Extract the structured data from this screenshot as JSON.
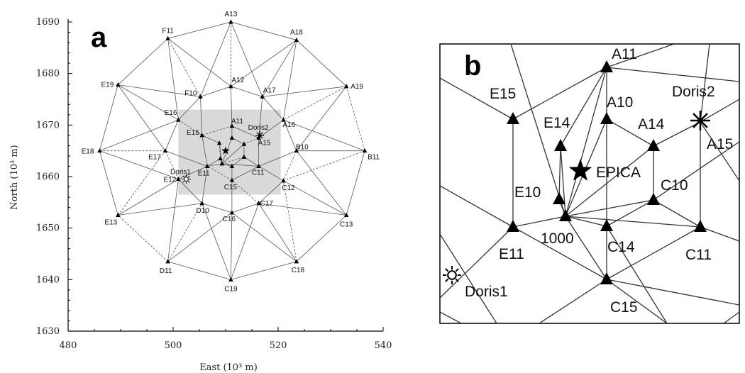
{
  "panel_a": {
    "letter": "a",
    "x_axis_title": "East (10³ m)",
    "y_axis_title": "North (10³ m)",
    "x_ticks": [
      "480",
      "500",
      "520",
      "540"
    ],
    "y_ticks": [
      "1630",
      "1640",
      "1650",
      "1660",
      "1670",
      "1680",
      "1690"
    ],
    "stations": [
      {
        "id": "A13",
        "e": 511.0,
        "n": 1690.0
      },
      {
        "id": "A18",
        "e": 523.5,
        "n": 1686.5
      },
      {
        "id": "F11",
        "e": 499.0,
        "n": 1686.8
      },
      {
        "id": "A19",
        "e": 533.0,
        "n": 1677.5
      },
      {
        "id": "E19",
        "e": 489.5,
        "n": 1677.8
      },
      {
        "id": "A12",
        "e": 511.0,
        "n": 1677.5
      },
      {
        "id": "A17",
        "e": 517.0,
        "n": 1675.5
      },
      {
        "id": "F10",
        "e": 505.2,
        "n": 1675.5
      },
      {
        "id": "E16",
        "e": 501.0,
        "n": 1671.0
      },
      {
        "id": "A16",
        "e": 521.0,
        "n": 1671.0
      },
      {
        "id": "A11",
        "e": 511.2,
        "n": 1669.8
      },
      {
        "id": "E15",
        "e": 505.5,
        "n": 1668.0
      },
      {
        "id": "A10",
        "e": 511.2,
        "n": 1667.5
      },
      {
        "id": "E14",
        "e": 508.8,
        "n": 1666.5
      },
      {
        "id": "A14",
        "e": 513.5,
        "n": 1666.3
      },
      {
        "id": "A15",
        "e": 516.3,
        "n": 1667.5
      },
      {
        "id": "E18",
        "e": 486.0,
        "n": 1665.0
      },
      {
        "id": "B11",
        "e": 536.5,
        "n": 1665.0
      },
      {
        "id": "E17",
        "e": 498.5,
        "n": 1665.0
      },
      {
        "id": "B10",
        "e": 523.5,
        "n": 1665.0
      },
      {
        "id": "E10",
        "e": 509.0,
        "n": 1663.5
      },
      {
        "id": "C10",
        "e": 513.5,
        "n": 1663.8
      },
      {
        "id": "E11",
        "e": 506.5,
        "n": 1662.0
      },
      {
        "id": "1000",
        "e": 509.3,
        "n": 1662.5
      },
      {
        "id": "C14",
        "e": 511.2,
        "n": 1662.0
      },
      {
        "id": "C11",
        "e": 516.3,
        "n": 1662.0
      },
      {
        "id": "E12",
        "e": 501.0,
        "n": 1659.5
      },
      {
        "id": "C15",
        "e": 511.2,
        "n": 1659.3
      },
      {
        "id": "C12",
        "e": 521.0,
        "n": 1659.2
      },
      {
        "id": "D10",
        "e": 505.5,
        "n": 1654.8
      },
      {
        "id": "C17",
        "e": 516.3,
        "n": 1654.8
      },
      {
        "id": "C16",
        "e": 511.2,
        "n": 1653.0
      },
      {
        "id": "E13",
        "e": 489.5,
        "n": 1652.5
      },
      {
        "id": "C13",
        "e": 533.0,
        "n": 1652.5
      },
      {
        "id": "D11",
        "e": 499.0,
        "n": 1643.5
      },
      {
        "id": "C18",
        "e": 523.5,
        "n": 1643.5
      },
      {
        "id": "C19",
        "e": 511.0,
        "n": 1640.0
      }
    ],
    "labeled_stations": [
      {
        "id": "A13",
        "text": "A13"
      },
      {
        "id": "A18",
        "text": "A18"
      },
      {
        "id": "F11",
        "text": "F11"
      },
      {
        "id": "A19",
        "text": "A19"
      },
      {
        "id": "E19",
        "text": "E19"
      },
      {
        "id": "A12",
        "text": "A12"
      },
      {
        "id": "A17",
        "text": "A17"
      },
      {
        "id": "F10",
        "text": "F10"
      },
      {
        "id": "E16",
        "text": "E16"
      },
      {
        "id": "A16",
        "text": "A16"
      },
      {
        "id": "A11",
        "text": "A11"
      },
      {
        "id": "E15",
        "text": "E15"
      },
      {
        "id": "A15",
        "text": "A15"
      },
      {
        "id": "E18",
        "text": "E18"
      },
      {
        "id": "B11",
        "text": "B11"
      },
      {
        "id": "E17",
        "text": "E17"
      },
      {
        "id": "B10",
        "text": "B10"
      },
      {
        "id": "E11",
        "text": "E11"
      },
      {
        "id": "C11",
        "text": "C11"
      },
      {
        "id": "E12",
        "text": "E12"
      },
      {
        "id": "C15",
        "text": "C15"
      },
      {
        "id": "C12",
        "text": "C12"
      },
      {
        "id": "D10",
        "text": "D10"
      },
      {
        "id": "C17",
        "text": "C17"
      },
      {
        "id": "C16",
        "text": "C16"
      },
      {
        "id": "E13",
        "text": "E13"
      },
      {
        "id": "C13",
        "text": "C13"
      },
      {
        "id": "D11",
        "text": "D11"
      },
      {
        "id": "C18",
        "text": "C18"
      },
      {
        "id": "C19",
        "text": "C19"
      }
    ],
    "doris1": {
      "label": "Doris1",
      "e": 502.5,
      "n": 1659.5
    },
    "doris2": {
      "label": "Doris2",
      "e": 516.5,
      "n": 1668.0
    },
    "epica": {
      "e": 510.0,
      "n": 1665.0
    },
    "highlight_box": {
      "e0": 501,
      "e1": 520.5,
      "n0": 1656.5,
      "n1": 1673.0
    },
    "edges": [
      [
        "A13",
        "A18"
      ],
      [
        "A18",
        "A19"
      ],
      [
        "A19",
        "B11"
      ],
      [
        "B11",
        "C13"
      ],
      [
        "C13",
        "C18"
      ],
      [
        "C18",
        "C19"
      ],
      [
        "C19",
        "D11"
      ],
      [
        "D11",
        "E13"
      ],
      [
        "E13",
        "E18"
      ],
      [
        "E18",
        "E19"
      ],
      [
        "E19",
        "F11"
      ],
      [
        "F11",
        "A13"
      ],
      [
        "A13",
        "A12"
      ],
      [
        "A13",
        "F10"
      ],
      [
        "A13",
        "A17"
      ],
      [
        "F11",
        "A12"
      ],
      [
        "F11",
        "E16"
      ],
      [
        "F11",
        "F10"
      ],
      [
        "A18",
        "A12"
      ],
      [
        "A18",
        "A17"
      ],
      [
        "A18",
        "A16"
      ],
      [
        "A19",
        "A17"
      ],
      [
        "A19",
        "A16"
      ],
      [
        "A19",
        "B10"
      ],
      [
        "E19",
        "E16"
      ],
      [
        "E19",
        "E17"
      ],
      [
        "E19",
        "F10"
      ],
      [
        "E18",
        "E17"
      ],
      [
        "E18",
        "E16"
      ],
      [
        "E18",
        "E12"
      ],
      [
        "B11",
        "B10"
      ],
      [
        "B11",
        "A16"
      ],
      [
        "B11",
        "C12"
      ],
      [
        "C13",
        "C12"
      ],
      [
        "C13",
        "B10"
      ],
      [
        "C13",
        "C17"
      ],
      [
        "C18",
        "C17"
      ],
      [
        "C18",
        "C12"
      ],
      [
        "C18",
        "C16"
      ],
      [
        "C19",
        "C16"
      ],
      [
        "C19",
        "D10"
      ],
      [
        "C19",
        "C17"
      ],
      [
        "D11",
        "D10"
      ],
      [
        "D11",
        "E12"
      ],
      [
        "D11",
        "C16"
      ],
      [
        "E13",
        "E12"
      ],
      [
        "E13",
        "D10"
      ],
      [
        "E13",
        "E17"
      ],
      [
        "F10",
        "A12"
      ],
      [
        "A12",
        "A17"
      ],
      [
        "A17",
        "A16"
      ],
      [
        "A16",
        "B10"
      ],
      [
        "B10",
        "C12"
      ],
      [
        "C12",
        "C17"
      ],
      [
        "C17",
        "C16"
      ],
      [
        "C16",
        "D10"
      ],
      [
        "D10",
        "E12"
      ],
      [
        "E12",
        "E17"
      ],
      [
        "E17",
        "E16"
      ],
      [
        "E16",
        "F10"
      ],
      [
        "A12",
        "A11"
      ],
      [
        "F10",
        "E15"
      ],
      [
        "E16",
        "E15"
      ],
      [
        "A17",
        "A15"
      ],
      [
        "A16",
        "A15"
      ],
      [
        "B10",
        "C11"
      ],
      [
        "C12",
        "C11"
      ],
      [
        "C17",
        "C15"
      ],
      [
        "C16",
        "C15"
      ],
      [
        "D10",
        "E11"
      ],
      [
        "E12",
        "E11"
      ],
      [
        "E17",
        "E11"
      ],
      [
        "A11",
        "E15"
      ],
      [
        "A11",
        "A15"
      ],
      [
        "A11",
        "A10"
      ],
      [
        "E15",
        "E14"
      ],
      [
        "E15",
        "E11"
      ],
      [
        "A15",
        "A14"
      ],
      [
        "A15",
        "C11"
      ],
      [
        "C11",
        "C10"
      ],
      [
        "C11",
        "C15"
      ],
      [
        "C15",
        "C14"
      ],
      [
        "C15",
        "E11"
      ],
      [
        "E11",
        "E10"
      ],
      [
        "E14",
        "1000"
      ],
      [
        "A10",
        "1000"
      ],
      [
        "A14",
        "1000"
      ],
      [
        "C10",
        "1000"
      ],
      [
        "E10",
        "1000"
      ],
      [
        "C14",
        "1000"
      ],
      [
        "E11",
        "1000"
      ],
      [
        "C11",
        "1000"
      ],
      [
        "E14",
        "E10"
      ],
      [
        "A10",
        "A14"
      ],
      [
        "A14",
        "C10"
      ],
      [
        "C10",
        "C14"
      ]
    ]
  },
  "panel_b": {
    "letter": "b",
    "stations": [
      {
        "label": "A11",
        "x": 855,
        "y": 95,
        "lx": 862,
        "ly": 83,
        "anchor": "start"
      },
      {
        "label": "E15",
        "x": 723,
        "y": 168,
        "lx": 690,
        "ly": 139,
        "anchor": "start"
      },
      {
        "label": "A10",
        "x": 855,
        "y": 168,
        "lx": 855,
        "ly": 151,
        "anchor": "start"
      },
      {
        "label": "E14",
        "x": 790,
        "y": 206,
        "lx": 766,
        "ly": 180,
        "anchor": "start"
      },
      {
        "label": "A14",
        "x": 921,
        "y": 206,
        "lx": 899,
        "ly": 182,
        "anchor": "start"
      },
      {
        "label": "E10",
        "x": 788,
        "y": 281,
        "lx": 725,
        "ly": 278,
        "anchor": "start"
      },
      {
        "label": "C10",
        "x": 921,
        "y": 282,
        "lx": 931,
        "ly": 268,
        "anchor": "start"
      },
      {
        "label": "E11",
        "x": 723,
        "y": 320,
        "lx": 703,
        "ly": 365,
        "anchor": "start"
      },
      {
        "label": "1000",
        "x": 797,
        "y": 305,
        "lx": 762,
        "ly": 343,
        "anchor": "start"
      },
      {
        "label": "C14",
        "x": 855,
        "y": 319,
        "lx": 856,
        "ly": 355,
        "anchor": "start"
      },
      {
        "label": "C11",
        "x": 987,
        "y": 320,
        "lx": 966,
        "ly": 366,
        "anchor": "start"
      },
      {
        "label": "C15",
        "x": 855,
        "y": 394,
        "lx": 860,
        "ly": 440,
        "anchor": "start"
      },
      {
        "label": "A15",
        "x": 987,
        "y": 172,
        "lx": 996,
        "ly": 210,
        "anchor": "start"
      }
    ],
    "epica": {
      "label": "EPICA",
      "x": 818,
      "y": 241,
      "lx": 840,
      "ly": 250
    },
    "doris1": {
      "label": "Doris1",
      "x": 637,
      "y": 388,
      "lx": 655,
      "ly": 418
    },
    "doris2": {
      "label": "Doris2",
      "x": 987,
      "y": 170,
      "lx": 947,
      "ly": 136
    }
  }
}
